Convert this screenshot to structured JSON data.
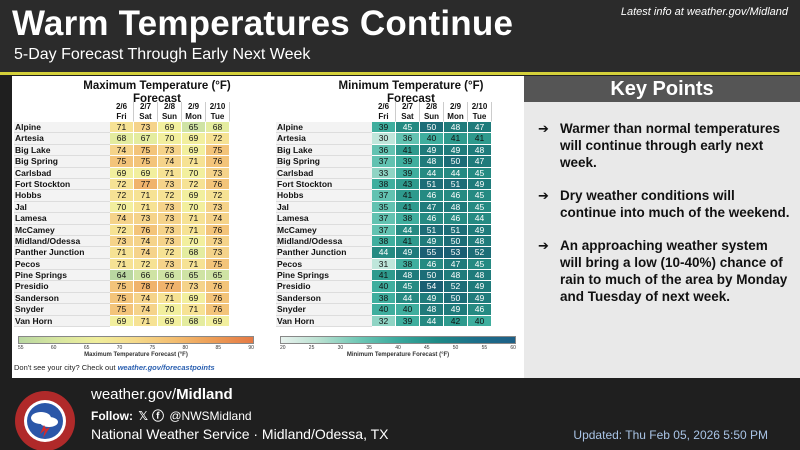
{
  "header": {
    "title": "Warm Temperatures Continue",
    "subtitle": "5-Day Forecast Through Early Next Week",
    "latest_info": "Latest info at weather.gov/Midland"
  },
  "days": [
    {
      "date": "2/6",
      "dow": "Fri"
    },
    {
      "date": "2/7",
      "dow": "Sat"
    },
    {
      "date": "2/8",
      "dow": "Sun"
    },
    {
      "date": "2/9",
      "dow": "Mon"
    },
    {
      "date": "2/10",
      "dow": "Tue"
    }
  ],
  "max_table": {
    "title_line1": "Maximum Temperature (°F)",
    "title_line2": "Forecast",
    "legend_label": "Maximum Temperature Forecast (°F)",
    "legend_ticks": [
      "55",
      "60",
      "65",
      "70",
      "75",
      "80",
      "85",
      "90"
    ],
    "rows": [
      {
        "site": "Alpine",
        "values": [
          71,
          73,
          69,
          65,
          68
        ]
      },
      {
        "site": "Artesia",
        "values": [
          68,
          67,
          70,
          69,
          72
        ]
      },
      {
        "site": "Big Lake",
        "values": [
          74,
          75,
          73,
          69,
          75
        ]
      },
      {
        "site": "Big Spring",
        "values": [
          75,
          75,
          74,
          71,
          76
        ]
      },
      {
        "site": "Carlsbad",
        "values": [
          69,
          69,
          71,
          70,
          73
        ]
      },
      {
        "site": "Fort Stockton",
        "values": [
          72,
          77,
          73,
          72,
          76
        ]
      },
      {
        "site": "Hobbs",
        "values": [
          72,
          71,
          72,
          69,
          72
        ]
      },
      {
        "site": "Jal",
        "values": [
          70,
          71,
          73,
          70,
          73
        ]
      },
      {
        "site": "Lamesa",
        "values": [
          74,
          73,
          73,
          71,
          74
        ]
      },
      {
        "site": "McCamey",
        "values": [
          72,
          76,
          73,
          71,
          76
        ]
      },
      {
        "site": "Midland/Odessa",
        "values": [
          73,
          74,
          73,
          70,
          73
        ]
      },
      {
        "site": "Panther Junction",
        "values": [
          71,
          74,
          72,
          68,
          73
        ]
      },
      {
        "site": "Pecos",
        "values": [
          71,
          72,
          73,
          71,
          75
        ]
      },
      {
        "site": "Pine Springs",
        "values": [
          64,
          66,
          66,
          65,
          65
        ]
      },
      {
        "site": "Presidio",
        "values": [
          75,
          78,
          77,
          73,
          76
        ]
      },
      {
        "site": "Sanderson",
        "values": [
          75,
          74,
          71,
          69,
          76
        ]
      },
      {
        "site": "Snyder",
        "values": [
          75,
          74,
          70,
          71,
          76
        ]
      },
      {
        "site": "Van Horn",
        "values": [
          69,
          71,
          69,
          68,
          69
        ]
      }
    ]
  },
  "min_table": {
    "title_line1": "Minimum Temperature (°F)",
    "title_line2": "Forecast",
    "legend_label": "Minimum Temperature Forecast (°F)",
    "legend_ticks": [
      "20",
      "25",
      "30",
      "35",
      "40",
      "45",
      "50",
      "55",
      "60"
    ],
    "rows": [
      {
        "site": "Alpine",
        "values": [
          39,
          45,
          50,
          48,
          47
        ]
      },
      {
        "site": "Artesia",
        "values": [
          30,
          36,
          40,
          41,
          41
        ]
      },
      {
        "site": "Big Lake",
        "values": [
          36,
          41,
          49,
          49,
          48
        ]
      },
      {
        "site": "Big Spring",
        "values": [
          37,
          39,
          48,
          50,
          47
        ]
      },
      {
        "site": "Carlsbad",
        "values": [
          33,
          39,
          44,
          44,
          45
        ]
      },
      {
        "site": "Fort Stockton",
        "values": [
          38,
          43,
          51,
          51,
          49
        ]
      },
      {
        "site": "Hobbs",
        "values": [
          37,
          41,
          46,
          46,
          45
        ]
      },
      {
        "site": "Jal",
        "values": [
          35,
          41,
          47,
          48,
          45
        ]
      },
      {
        "site": "Lamesa",
        "values": [
          37,
          38,
          46,
          46,
          44
        ]
      },
      {
        "site": "McCamey",
        "values": [
          37,
          44,
          51,
          51,
          49
        ]
      },
      {
        "site": "Midland/Odessa",
        "values": [
          38,
          41,
          49,
          50,
          48
        ]
      },
      {
        "site": "Panther Junction",
        "values": [
          44,
          49,
          55,
          53,
          52
        ]
      },
      {
        "site": "Pecos",
        "values": [
          31,
          38,
          46,
          47,
          45
        ]
      },
      {
        "site": "Pine Springs",
        "values": [
          41,
          48,
          50,
          48,
          48
        ]
      },
      {
        "site": "Presidio",
        "values": [
          40,
          45,
          54,
          52,
          49
        ]
      },
      {
        "site": "Sanderson",
        "values": [
          38,
          44,
          49,
          50,
          49
        ]
      },
      {
        "site": "Snyder",
        "values": [
          40,
          40,
          48,
          49,
          46
        ]
      },
      {
        "site": "Van Horn",
        "values": [
          32,
          39,
          44,
          42,
          40
        ]
      }
    ]
  },
  "footnote": {
    "text": "Don't see your city? Check out",
    "link": "weather.gov/forecastpoints"
  },
  "key_points": {
    "title": "Key Points",
    "items": [
      "Warmer than normal temperatures will continue through early next week.",
      "Dry weather conditions will continue into much of the weekend.",
      "An approaching weather system will bring a low (10-40%) chance of rain to much of the area by Monday and Tuesday of next week."
    ]
  },
  "footer": {
    "url_prefix": "weather.gov/",
    "url_bold": "Midland",
    "follow_label": "Follow:",
    "handle": "@NWSMidland",
    "office": "National Weather Service · Midland/Odessa, TX",
    "updated": "Updated: Thu Feb 05, 2026 5:50 PM",
    "logo_text": "NATIONAL WEATHER SERVICE"
  },
  "colors": {
    "accent": "#d4d03a",
    "header_bg": "#2b2b2b",
    "keypoints_bg": "#e9e9e9"
  }
}
